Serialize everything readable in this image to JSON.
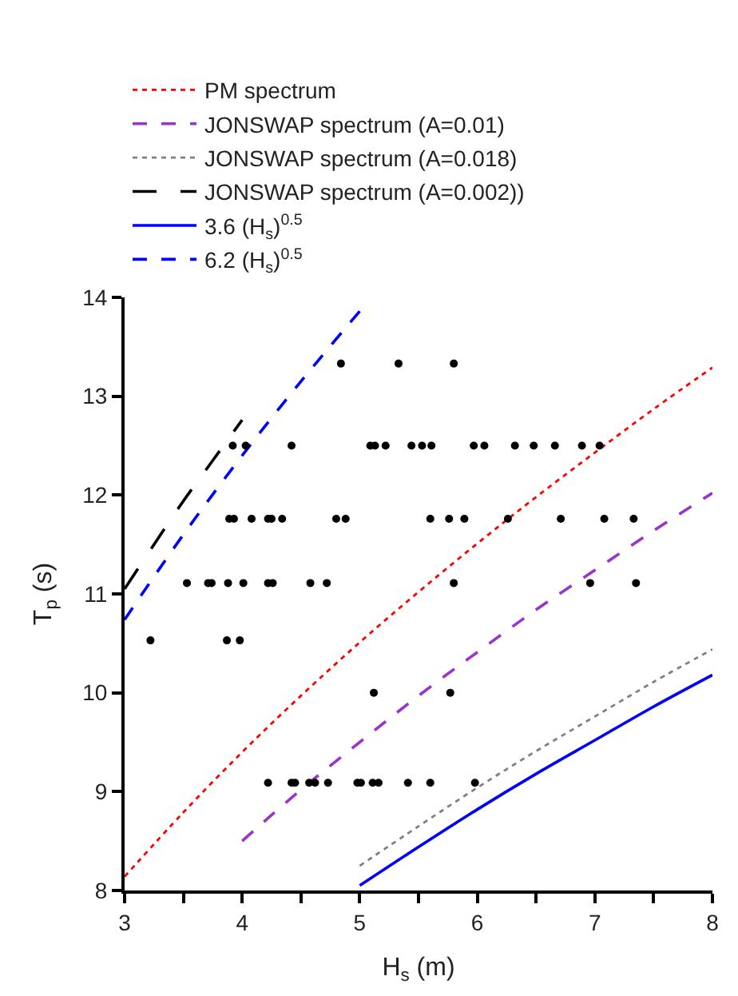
{
  "chart_data": {
    "type": "line",
    "xlabel": "H$_{s}$ (m)",
    "ylabel": "T$_{p}$ (s)",
    "xlim": [
      3,
      8
    ],
    "ylim": [
      8,
      14
    ],
    "xticks": [
      3,
      {
        "value": 3.5,
        "label": null
      },
      4,
      {
        "value": 4.5,
        "label": null
      },
      5,
      {
        "value": 5.5,
        "label": null
      },
      6,
      {
        "value": 6.5,
        "label": null
      },
      7,
      {
        "value": 7.5,
        "label": null
      },
      8
    ],
    "yticks": [
      8,
      9,
      10,
      11,
      12,
      13,
      14
    ],
    "legend": "top left",
    "series": [
      {
        "name": "PM spectrum",
        "color": "#ff0000",
        "line_style": "dotted",
        "x": [
          3,
          3.5,
          4,
          4.5,
          5,
          5.5,
          6,
          6.5,
          7,
          7.5,
          8
        ],
        "values": [
          8.14,
          8.79,
          9.4,
          9.97,
          10.51,
          11.02,
          11.51,
          11.98,
          12.43,
          12.87,
          13.29
        ]
      },
      {
        "name": "JONSWAP spectrum (A=0.01)",
        "color": "#9933cc",
        "line_style": "dashed",
        "x": [
          4,
          4.5,
          5,
          5.5,
          6,
          6.5,
          7,
          7.5,
          8
        ],
        "values": [
          8.5,
          9.02,
          9.5,
          9.97,
          10.41,
          10.84,
          11.24,
          11.64,
          12.02
        ]
      },
      {
        "name": "JONSWAP spectrum (A=0.018)",
        "color": "#808080",
        "line_style": "dotted",
        "x": [
          5,
          5.5,
          6,
          6.5,
          7,
          7.5,
          8
        ],
        "values": [
          8.25,
          8.65,
          9.04,
          9.41,
          9.76,
          10.11,
          10.44
        ]
      },
      {
        "name": "JONSWAP spectrum (A=0.002))",
        "color": "#000000",
        "line_style": "longdash",
        "x": [
          3,
          3.25,
          3.5,
          3.75,
          4
        ],
        "values": [
          11.05,
          11.5,
          11.94,
          12.35,
          12.76
        ]
      },
      {
        "name": "3.6 (H$_{s}$)$^{0.5}$",
        "color": "#0000ff",
        "line_style": "solid",
        "x": [
          5,
          5.5,
          6,
          6.5,
          7,
          7.5,
          8
        ],
        "values": [
          8.05,
          8.44,
          8.82,
          9.18,
          9.52,
          9.86,
          10.18
        ]
      },
      {
        "name": "6.2 (H$_{s}$)$^{0.5}$",
        "color": "#0000ff",
        "line_style": "dashed",
        "x": [
          3,
          3.5,
          4,
          4.5,
          5
        ],
        "values": [
          10.74,
          11.6,
          12.4,
          13.15,
          13.86
        ]
      },
      {
        "type": "scatter",
        "marker": "circle",
        "color": "#000000",
        "x": [
          4.84,
          5.33,
          5.8,
          3.92,
          4.03,
          4.42,
          5.09,
          5.13,
          5.22,
          5.44,
          5.53,
          5.61,
          5.97,
          6.06,
          6.32,
          6.48,
          6.66,
          6.89,
          7.04,
          3.89,
          3.93,
          4.08,
          4.22,
          4.25,
          4.34,
          4.8,
          4.88,
          5.6,
          5.76,
          5.89,
          6.26,
          6.71,
          7.08,
          7.33,
          3.53,
          3.71,
          3.74,
          3.88,
          4.01,
          4.22,
          4.26,
          4.58,
          4.72,
          5.8,
          6.96,
          7.35,
          3.22,
          3.87,
          3.98,
          5.12,
          5.77,
          4.22,
          4.42,
          4.45,
          4.57,
          4.62,
          4.73,
          4.98,
          5.01,
          5.11,
          5.16,
          5.41,
          5.6,
          5.98
        ],
        "values": [
          13.33,
          13.33,
          13.33,
          12.5,
          12.5,
          12.5,
          12.5,
          12.5,
          12.5,
          12.5,
          12.5,
          12.5,
          12.5,
          12.5,
          12.5,
          12.5,
          12.5,
          12.5,
          12.5,
          11.76,
          11.76,
          11.76,
          11.76,
          11.76,
          11.76,
          11.76,
          11.76,
          11.76,
          11.76,
          11.76,
          11.76,
          11.76,
          11.76,
          11.76,
          11.11,
          11.11,
          11.11,
          11.11,
          11.11,
          11.11,
          11.11,
          11.11,
          11.11,
          11.11,
          11.11,
          11.11,
          10.53,
          10.53,
          10.53,
          10,
          10,
          9.09,
          9.09,
          9.09,
          9.09,
          9.09,
          9.09,
          9.09,
          9.09,
          9.09,
          9.09,
          9.09,
          9.09,
          9.09
        ]
      }
    ]
  }
}
